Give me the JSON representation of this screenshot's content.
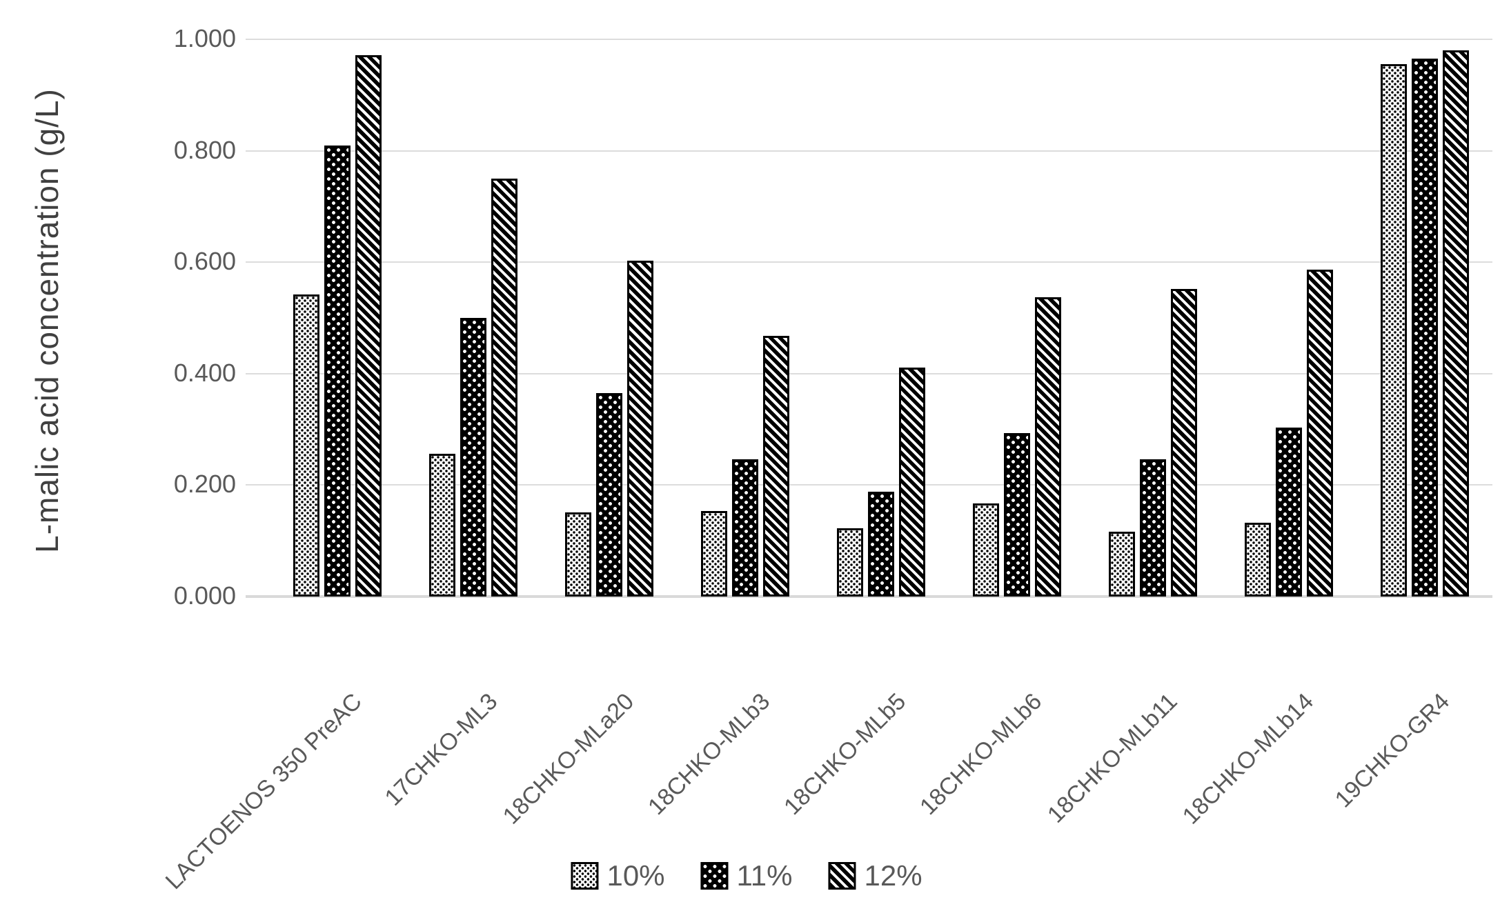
{
  "chart_data": {
    "type": "bar",
    "title": "",
    "xlabel": "",
    "ylabel": "L-malic acid concentration (g/L)",
    "ylim": [
      0,
      1.0
    ],
    "ytick_labels": [
      "1.000",
      "0.800",
      "0.600",
      "0.400",
      "0.200",
      "0.000"
    ],
    "grid": true,
    "legend_position": "bottom-center",
    "categories": [
      "LACTOENOS 350 PreAC",
      "17CHKO-ML3",
      "18CHKO-MLa20",
      "18CHKO-MLb3",
      "18CHKO-MLb5",
      "18CHKO-MLb6",
      "18CHKO-MLb11",
      "18CHKO-MLb14",
      "19CHKO-GR4"
    ],
    "series": [
      {
        "name": "10%",
        "pattern": "small-black-dots-on-white",
        "values": [
          0.542,
          0.256,
          0.151,
          0.153,
          0.122,
          0.167,
          0.116,
          0.132,
          0.956
        ]
      },
      {
        "name": "11%",
        "pattern": "white-dots-on-black",
        "values": [
          0.81,
          0.5,
          0.365,
          0.246,
          0.188,
          0.293,
          0.246,
          0.303,
          0.965
        ]
      },
      {
        "name": "12%",
        "pattern": "white-diagonal-stripes-on-black",
        "values": [
          0.971,
          0.75,
          0.603,
          0.468,
          0.411,
          0.537,
          0.552,
          0.587,
          0.98
        ]
      }
    ]
  },
  "colors": {
    "axis_text": "#595959",
    "axis_title_text": "#404040",
    "gridline": "#dcdcdc",
    "bar_fill_dark": "#000000",
    "bar_fill_light": "#ffffff",
    "background": "#ffffff"
  },
  "legend": {
    "items": [
      {
        "label": "10%",
        "swatch": "dotted-light-pattern-swatch"
      },
      {
        "label": "11%",
        "swatch": "dotted-dark-pattern-swatch"
      },
      {
        "label": "12%",
        "swatch": "diagonal-stripe-pattern-swatch"
      }
    ]
  }
}
